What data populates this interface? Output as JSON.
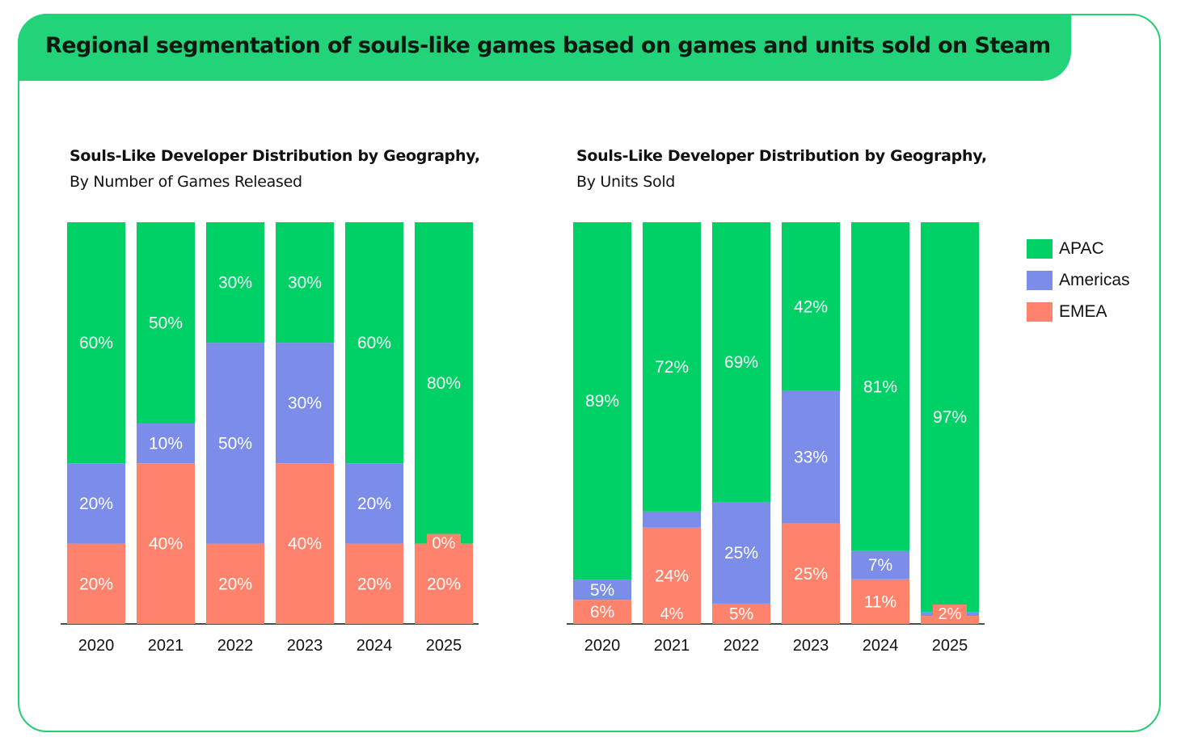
{
  "title": "Regional segmentation of souls-like games based on games and units sold on Steam",
  "colors": {
    "APAC": "#00d166",
    "Americas": "#7b8de8",
    "EMEA": "#ff836c"
  },
  "legend": [
    "APAC",
    "Americas",
    "EMEA"
  ],
  "chart_data": [
    {
      "type": "bar",
      "stacked": true,
      "title": "Souls-Like Developer Distribution by Geography,",
      "subtitle": "By Number of Games Released",
      "categories": [
        "2020",
        "2021",
        "2022",
        "2023",
        "2024",
        "2025"
      ],
      "series": [
        {
          "name": "EMEA",
          "values": [
            20,
            40,
            20,
            40,
            20,
            20
          ]
        },
        {
          "name": "Americas",
          "values": [
            20,
            10,
            50,
            30,
            20,
            0
          ]
        },
        {
          "name": "APAC",
          "values": [
            60,
            50,
            30,
            30,
            60,
            80
          ]
        }
      ],
      "ylim": [
        0,
        100
      ],
      "unit": "%"
    },
    {
      "type": "bar",
      "stacked": true,
      "title": "Souls-Like Developer Distribution by Geography,",
      "subtitle": "By Units Sold",
      "categories": [
        "2020",
        "2021",
        "2022",
        "2023",
        "2024",
        "2025"
      ],
      "series": [
        {
          "name": "EMEA",
          "values": [
            6,
            24,
            5,
            25,
            11,
            2
          ]
        },
        {
          "name": "Americas",
          "values": [
            5,
            4,
            25,
            33,
            7,
            1
          ]
        },
        {
          "name": "APAC",
          "values": [
            89,
            72,
            69,
            42,
            81,
            97
          ]
        }
      ],
      "ylim": [
        0,
        100
      ],
      "unit": "%"
    }
  ]
}
